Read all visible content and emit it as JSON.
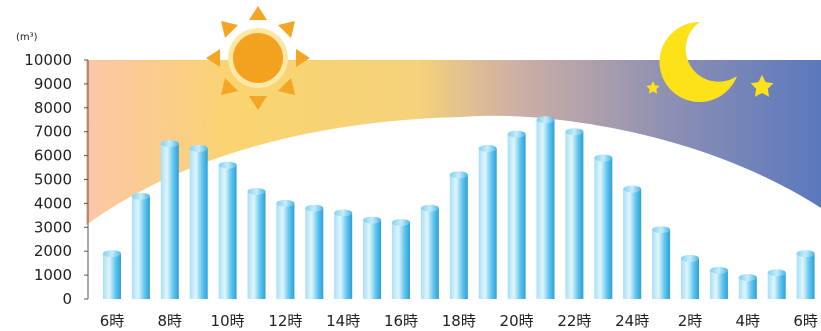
{
  "chart_data": {
    "type": "bar",
    "unit_label": "(m³)",
    "ylim": [
      0,
      10000
    ],
    "y_ticks": [
      "0",
      "1000",
      "2000",
      "3000",
      "4000",
      "5000",
      "6000",
      "7000",
      "8000",
      "9000",
      "10000"
    ],
    "x_tick_labels": [
      "6時",
      "8時",
      "10時",
      "12時",
      "14時",
      "16時",
      "18時",
      "20時",
      "22時",
      "24時",
      "2時",
      "4時",
      "6時"
    ],
    "categories": [
      "6時",
      "7時",
      "8時",
      "9時",
      "10時",
      "11時",
      "12時",
      "13時",
      "14時",
      "15時",
      "16時",
      "17時",
      "18時",
      "19時",
      "20時",
      "21時",
      "22時",
      "23時",
      "24時",
      "1時",
      "2時",
      "3時",
      "4時",
      "5時",
      "6時"
    ],
    "values": [
      1900,
      4300,
      6500,
      6300,
      5600,
      4500,
      4000,
      3800,
      3600,
      3300,
      3200,
      3800,
      5200,
      6300,
      6900,
      7500,
      7000,
      5900,
      4600,
      2900,
      1700,
      1200,
      900,
      1100,
      1900
    ],
    "grid": false,
    "legend": "none"
  },
  "decor": {
    "sun_icon": "sun-icon",
    "moon_icon": "crescent-moon-icon",
    "star_icon": "star-icon",
    "colors": {
      "day_left": "#fcc6a8",
      "day_mid": "#f9d470",
      "dusk": "#cfb0a4",
      "night": "#5b78bd",
      "bar_light": "#e2f5fd",
      "bar_main": "#5fc6ee",
      "bar_dark": "#2e9fd6",
      "sun": "#f3a21f",
      "sun_rays": "#f4a523",
      "moon": "#fde21a"
    }
  }
}
